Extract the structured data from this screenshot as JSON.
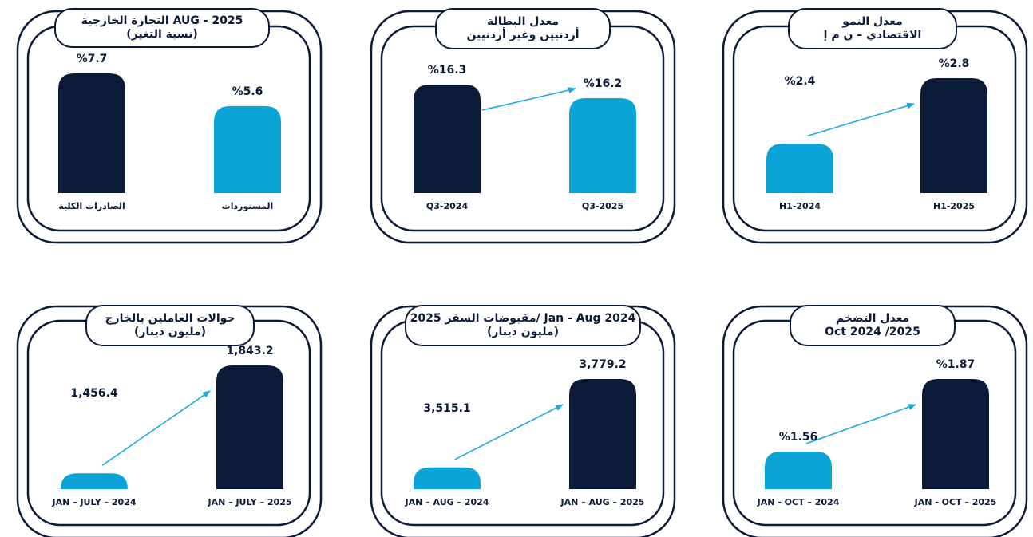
{
  "colors": {
    "dark": "#0b1a36",
    "light": "#0aa5d6",
    "arrow": "#1ba9df",
    "border": "#0b1a36"
  },
  "chart_data": [
    {
      "type": "bar",
      "title_line1": "التجارة الخارجية AUG - 2025",
      "title_line2": "(نسبة التغير)",
      "categories": [
        "الصادرات الكلية",
        "المستوردات"
      ],
      "values": [
        7.7,
        5.6
      ],
      "value_labels": [
        "%7.7",
        "%5.6"
      ],
      "colors": [
        "dark",
        "light"
      ],
      "arrow": false
    },
    {
      "type": "bar",
      "title_line1": "معدل البطالة",
      "title_line2": "أردنيين وغير أردنيين",
      "categories": [
        "Q3-2024",
        "Q3-2025"
      ],
      "values": [
        16.3,
        16.2
      ],
      "value_labels": [
        "%16.3",
        "%16.2"
      ],
      "colors": [
        "dark",
        "light"
      ],
      "arrow": true
    },
    {
      "type": "bar",
      "title_line1": "معدل النمو",
      "title_line2": "الاقتصادي – ن م إ",
      "categories": [
        "H1-2024",
        "H1-2025"
      ],
      "values": [
        2.4,
        2.8
      ],
      "value_labels": [
        "%2.4",
        "%2.8"
      ],
      "colors": [
        "light",
        "dark"
      ],
      "arrow": true
    },
    {
      "type": "bar",
      "title_line1": "حوالات العاملين بالخارج",
      "title_line2": "(مليون دينار)",
      "categories": [
        "JAN – JULY – 2024",
        "JAN – JULY – 2025"
      ],
      "values": [
        1456.4,
        1843.2
      ],
      "value_labels": [
        "1,456.4",
        "1,843.2"
      ],
      "colors": [
        "light",
        "dark"
      ],
      "arrow": true
    },
    {
      "type": "bar",
      "title_line1": "مقبوضات السفر 2025/ Jan - Aug 2024",
      "title_line2": "(مليون دينار)",
      "categories": [
        "JAN – AUG – 2024",
        "JAN – AUG – 2025"
      ],
      "values": [
        3515.1,
        3779.2
      ],
      "value_labels": [
        "3,515.1",
        "3,779.2"
      ],
      "colors": [
        "light",
        "dark"
      ],
      "arrow": true
    },
    {
      "type": "bar",
      "title_line1": "معدل التضخم",
      "title_line2": "Oct 2024 /2025",
      "categories": [
        "JAN - OCT – 2024",
        "JAN - OCT – 2025"
      ],
      "values": [
        1.56,
        1.87
      ],
      "value_labels": [
        "%1.56",
        "%1.87"
      ],
      "colors": [
        "light",
        "dark"
      ],
      "arrow": true
    }
  ]
}
